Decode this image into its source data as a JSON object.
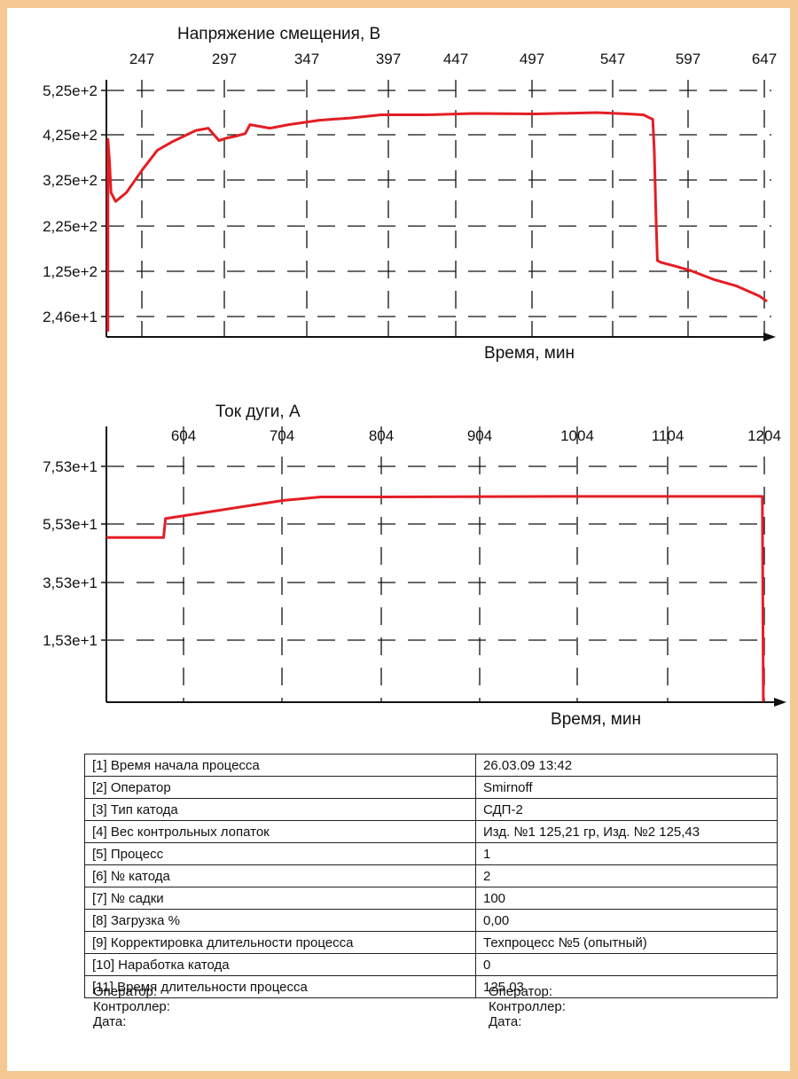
{
  "chart_data": [
    {
      "type": "line",
      "title": "Напряжение смещения, В",
      "xlabel": "Время, мин",
      "x_ticks": [
        "247",
        "297",
        "347",
        "397",
        "447",
        "497",
        "547",
        "597",
        "647"
      ],
      "y_ticks": [
        "5,25e+2",
        "4,25e+2",
        "3,25e+2",
        "2,25e+2",
        "1,25e+2",
        "2,46e+1"
      ],
      "xlim": [
        222,
        650
      ],
      "ylim": [
        0,
        555
      ],
      "grid": true,
      "color": "#e31e24",
      "series": [
        {
          "values_xy": [
            [
              223,
              12
            ],
            [
              223,
              445
            ],
            [
              224,
              395
            ],
            [
              225,
              325
            ],
            [
              228,
              305
            ],
            [
              235,
              325
            ],
            [
              245,
              375
            ],
            [
              255,
              420
            ],
            [
              265,
              440
            ],
            [
              280,
              465
            ],
            [
              288,
              470
            ],
            [
              295,
              442
            ],
            [
              300,
              448
            ],
            [
              306,
              452
            ],
            [
              312,
              458
            ],
            [
              315,
              478
            ],
            [
              320,
              475
            ],
            [
              328,
              470
            ],
            [
              340,
              478
            ],
            [
              360,
              488
            ],
            [
              380,
              493
            ],
            [
              400,
              500
            ],
            [
              430,
              500
            ],
            [
              460,
              503
            ],
            [
              500,
              502
            ],
            [
              540,
              505
            ],
            [
              560,
              502
            ],
            [
              570,
              500
            ],
            [
              576,
              490
            ],
            [
              577,
              420
            ],
            [
              578,
              280
            ],
            [
              579,
              172
            ],
            [
              581,
              168
            ],
            [
              590,
              160
            ],
            [
              600,
              150
            ],
            [
              615,
              130
            ],
            [
              630,
              115
            ],
            [
              645,
              92
            ],
            [
              650,
              80
            ]
          ]
        }
      ]
    },
    {
      "type": "line",
      "title": "Ток дуги, А",
      "xlabel": "Время, мин",
      "x_ticks": [
        "604",
        "704",
        "804",
        "904",
        "1004",
        "1104",
        "1204"
      ],
      "y_ticks": [
        "7,53e+1",
        "5,53e+1",
        "3,53e+1",
        "1,53e+1"
      ],
      "xlim": [
        515,
        1205
      ],
      "ylim": [
        0,
        98.3
      ],
      "grid": true,
      "color": "#e31e24",
      "series": [
        {
          "values_xy": [
            [
              515,
              61.1
            ],
            [
              575,
              61.1
            ],
            [
              577,
              68.1
            ],
            [
              700,
              74.8
            ],
            [
              740,
              76.1
            ],
            [
              800,
              76.1
            ],
            [
              1000,
              76.3
            ],
            [
              1100,
              76.3
            ],
            [
              1203,
              76.3
            ],
            [
              1204,
              0.2
            ]
          ]
        }
      ]
    }
  ],
  "table": {
    "rows": [
      {
        "key": "[1] Время начала процесса",
        "value": "26.03.09 13:42"
      },
      {
        "key": "[2] Оператор",
        "value": "Smirnoff"
      },
      {
        "key": "[3] Тип катода",
        "value": "СДП-2"
      },
      {
        "key": "[4] Вес контрольных лопаток",
        "value": "Изд. №1 125,21 гр, Изд. №2 125,43"
      },
      {
        "key": "[5] Процесс",
        "value": "1"
      },
      {
        "key": "[6] № катода",
        "value": "2"
      },
      {
        "key": "[7] № садки",
        "value": "100"
      },
      {
        "key": "[8] Загрузка %",
        "value": "0,00"
      },
      {
        "key": "[9] Корректировка длительности процесса",
        "value": "Техпроцесс №5 (опытный)"
      },
      {
        "key": "[10] Наработка катода",
        "value": "0"
      },
      {
        "key": "[11] Время длительности процесса",
        "value": "125,03"
      }
    ]
  },
  "signatures": {
    "left": {
      "operator": "Оператор:",
      "controller": "Контроллер:",
      "date": "Дата:"
    },
    "right": {
      "operator": "Оператор:",
      "controller": "Контроллер:",
      "date": "Дата:"
    }
  }
}
